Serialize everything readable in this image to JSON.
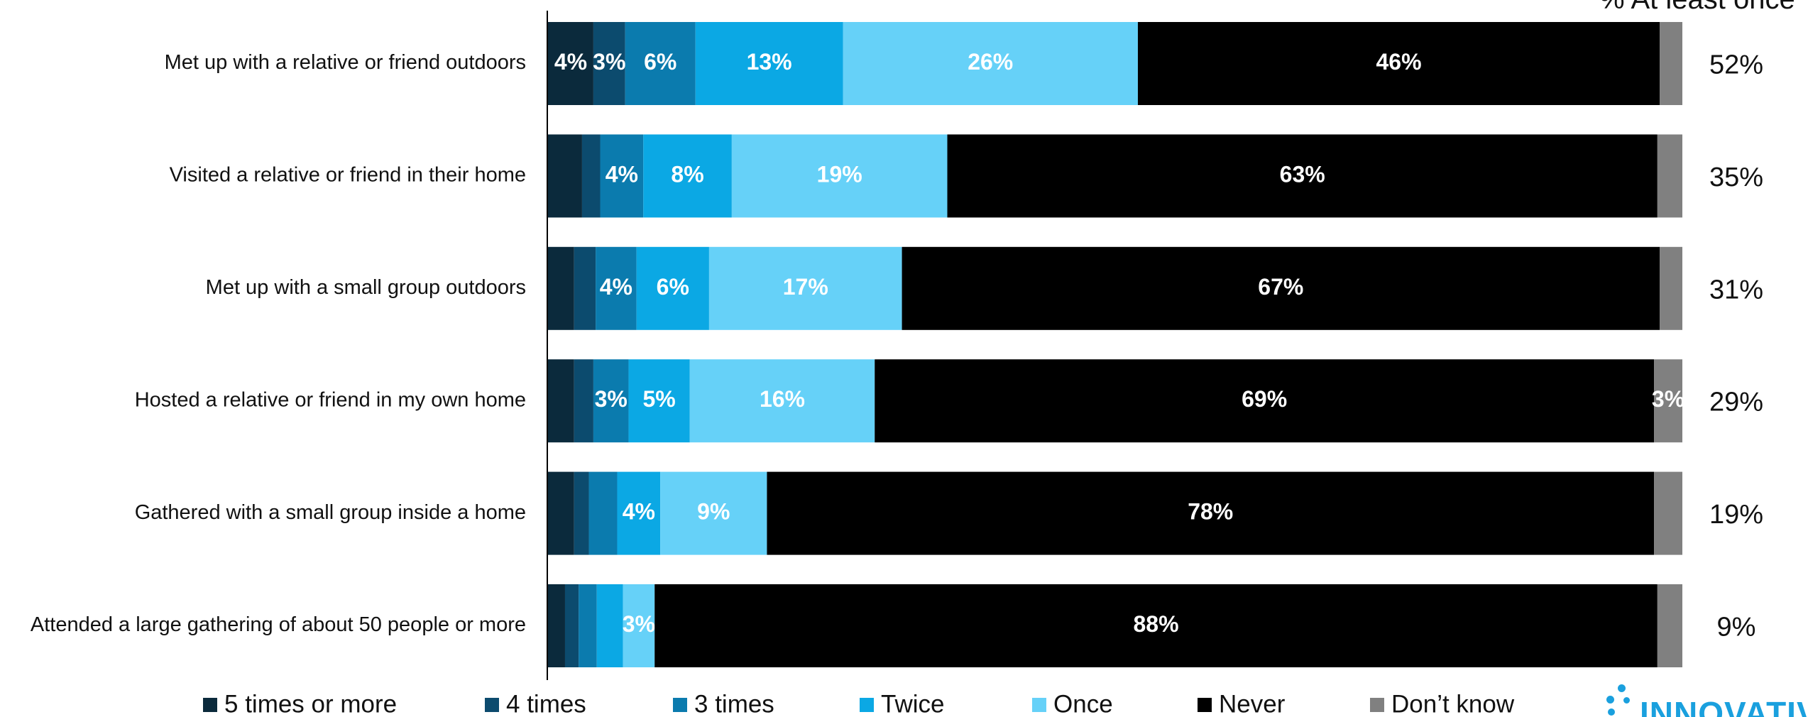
{
  "chart_data": {
    "type": "bar",
    "orientation": "horizontal-stacked-100",
    "title": "",
    "xlabel": "",
    "ylabel": "",
    "xlim": [
      0,
      100
    ],
    "categories": [
      "Met up with a relative or friend outdoors",
      "Visited a relative or friend in their home",
      "Met up with a small group outdoors",
      "Hosted a relative or friend in my own home",
      "Gathered with a small group inside a home",
      "Attended a large gathering of about 50 people or more"
    ],
    "series": [
      {
        "name": "5 times or more",
        "color": "#0b2a3c",
        "values": [
          4,
          3,
          2.3,
          2.3,
          2.3,
          1.5
        ],
        "labels": [
          "4%",
          "",
          "",
          "",
          "",
          ""
        ]
      },
      {
        "name": "4 times",
        "color": "#0c4b6e",
        "values": [
          2.8,
          1.6,
          1.9,
          1.7,
          1.3,
          1.2
        ],
        "labels": [
          "3%",
          "",
          "",
          "",
          "",
          ""
        ]
      },
      {
        "name": "3 times",
        "color": "#0b7bae",
        "values": [
          6.2,
          3.8,
          3.6,
          3.1,
          2.5,
          1.6
        ],
        "labels": [
          "6%",
          "4%",
          "4%",
          "3%",
          "",
          ""
        ]
      },
      {
        "name": "Twice",
        "color": "#0ba8e4",
        "values": [
          13,
          7.8,
          6.4,
          5.4,
          3.8,
          2.3
        ],
        "labels": [
          "13%",
          "8%",
          "6%",
          "5%",
          "4%",
          ""
        ]
      },
      {
        "name": "Once",
        "color": "#66d1f8",
        "values": [
          26,
          19,
          17,
          16.3,
          9.4,
          2.8
        ],
        "labels": [
          "26%",
          "19%",
          "17%",
          "16%",
          "9%",
          "3%"
        ]
      },
      {
        "name": "Never",
        "color": "#000000",
        "values": [
          46,
          62.6,
          66.8,
          68.7,
          78.2,
          88.4
        ],
        "labels": [
          "46%",
          "63%",
          "67%",
          "69%",
          "78%",
          "88%"
        ]
      },
      {
        "name": "Don’t know",
        "color": "#808080",
        "values": [
          2,
          2.2,
          2,
          2.5,
          2.5,
          2.2
        ],
        "labels": [
          "",
          "",
          "",
          "3%",
          "",
          ""
        ]
      }
    ],
    "right_header": "% At least once",
    "right_values": [
      "52%",
      "35%",
      "31%",
      "29%",
      "19%",
      "9%"
    ],
    "legend_position": "bottom"
  },
  "logo": {
    "text": "INNOVATIVE"
  }
}
